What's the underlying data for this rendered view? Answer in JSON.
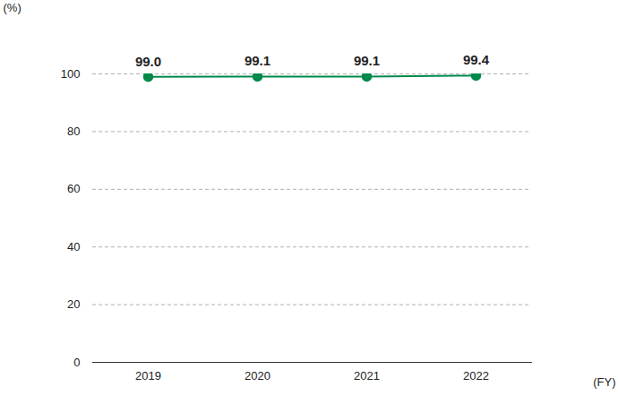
{
  "chart_data": {
    "type": "line",
    "categories": [
      "2019",
      "2020",
      "2021",
      "2022"
    ],
    "values": [
      99.0,
      99.1,
      99.1,
      99.4
    ],
    "value_labels": [
      "99.0",
      "99.1",
      "99.1",
      "99.4"
    ],
    "color": "#00894a",
    "marker": "circle",
    "ylabel": "(%)",
    "xlabel": "(FY)",
    "ylim": [
      0,
      100
    ],
    "yticks": [
      0,
      20,
      40,
      60,
      80,
      100
    ],
    "grid": true,
    "data_labels": true
  }
}
